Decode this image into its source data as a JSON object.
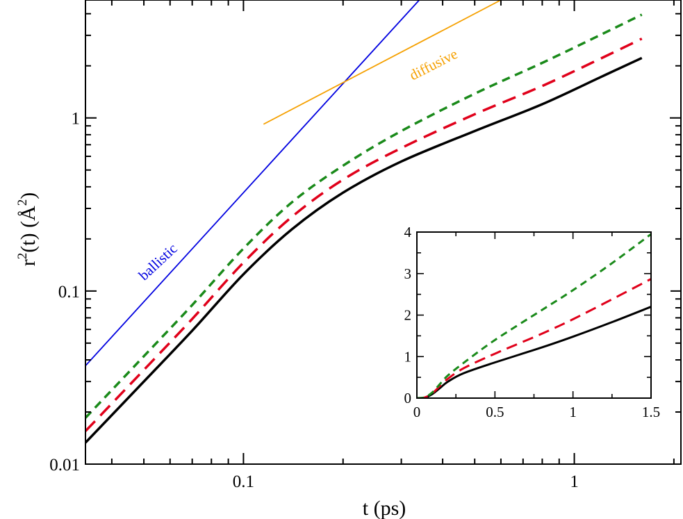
{
  "chart_data": [
    {
      "id": "main",
      "type": "line",
      "xscale": "log",
      "yscale": "log",
      "xlim": [
        0.0333,
        2.1
      ],
      "ylim": [
        0.01,
        4.8
      ],
      "xlabel": "t  (ps)",
      "ylabel_main": "r",
      "ylabel_sup": "2",
      "ylabel_rest": "(t)   (Å",
      "ylabel_sup2": "2",
      "ylabel_close": ")",
      "x_ticks": [
        {
          "value": 0.1,
          "label": "0.1"
        },
        {
          "value": 1,
          "label": "1"
        }
      ],
      "y_ticks": [
        {
          "value": 0.01,
          "label": "0.01"
        },
        {
          "value": 0.1,
          "label": "0.1"
        },
        {
          "value": 1,
          "label": "1"
        }
      ],
      "grid": false,
      "series": [
        {
          "color": "#000000",
          "dash": "solid",
          "width": 3.5,
          "x": [
            0.0333,
            0.05,
            0.07,
            0.1,
            0.14,
            0.2,
            0.3,
            0.5,
            0.8,
            1.2,
            1.6
          ],
          "y": [
            0.0133,
            0.03,
            0.059,
            0.125,
            0.227,
            0.37,
            0.56,
            0.84,
            1.2,
            1.72,
            2.22
          ]
        },
        {
          "color": "#e0001a",
          "dash": "long",
          "width": 3.5,
          "x": [
            0.0333,
            0.05,
            0.07,
            0.1,
            0.14,
            0.2,
            0.3,
            0.5,
            0.8,
            1.2,
            1.6
          ],
          "y": [
            0.0155,
            0.035,
            0.069,
            0.146,
            0.268,
            0.44,
            0.67,
            1.05,
            1.53,
            2.2,
            2.87
          ]
        },
        {
          "color": "#1a8a1a",
          "dash": "short",
          "width": 3.5,
          "x": [
            0.0333,
            0.05,
            0.07,
            0.1,
            0.14,
            0.2,
            0.3,
            0.5,
            0.8,
            1.2,
            1.6
          ],
          "y": [
            0.0185,
            0.042,
            0.083,
            0.176,
            0.325,
            0.53,
            0.84,
            1.38,
            2.08,
            3.02,
            3.95
          ]
        }
      ],
      "reference_lines": [
        {
          "label": "ballistic",
          "color": "#0000e0",
          "x": [
            0.0333,
            0.34
          ],
          "y": [
            0.037,
            4.8
          ]
        },
        {
          "label": "diffusive",
          "color": "#f5a000",
          "x": [
            0.115,
            0.6
          ],
          "y": [
            0.92,
            4.8
          ]
        }
      ]
    },
    {
      "id": "inset",
      "type": "line",
      "xlim": [
        0,
        1.5
      ],
      "ylim": [
        0,
        4
      ],
      "x_ticks": [
        {
          "value": 0,
          "label": "0"
        },
        {
          "value": 0.5,
          "label": "0.5"
        },
        {
          "value": 1,
          "label": "1"
        },
        {
          "value": 1.5,
          "label": "1.5"
        }
      ],
      "y_ticks": [
        {
          "value": 0,
          "label": "0"
        },
        {
          "value": 1,
          "label": "1"
        },
        {
          "value": 2,
          "label": "2"
        },
        {
          "value": 3,
          "label": "3"
        },
        {
          "value": 4,
          "label": "4"
        }
      ],
      "grid": false,
      "series": [
        {
          "color": "#000000",
          "dash": "solid",
          "width": 3,
          "x": [
            0,
            0.05,
            0.1,
            0.15,
            0.2,
            0.3,
            0.5,
            0.8,
            1.0,
            1.25,
            1.5
          ],
          "y": [
            0,
            0.01,
            0.1,
            0.25,
            0.4,
            0.6,
            0.86,
            1.22,
            1.48,
            1.83,
            2.2
          ]
        },
        {
          "color": "#e0001a",
          "dash": "long",
          "width": 3,
          "x": [
            0,
            0.05,
            0.1,
            0.15,
            0.2,
            0.3,
            0.5,
            0.8,
            1.0,
            1.25,
            1.5
          ],
          "y": [
            0,
            0.015,
            0.12,
            0.3,
            0.47,
            0.72,
            1.07,
            1.55,
            1.9,
            2.38,
            2.87
          ]
        },
        {
          "color": "#1a8a1a",
          "dash": "short",
          "width": 3,
          "x": [
            0,
            0.05,
            0.1,
            0.15,
            0.2,
            0.3,
            0.5,
            0.8,
            1.0,
            1.25,
            1.5
          ],
          "y": [
            0,
            0.02,
            0.14,
            0.35,
            0.55,
            0.85,
            1.4,
            2.12,
            2.6,
            3.25,
            3.95
          ]
        }
      ]
    }
  ]
}
